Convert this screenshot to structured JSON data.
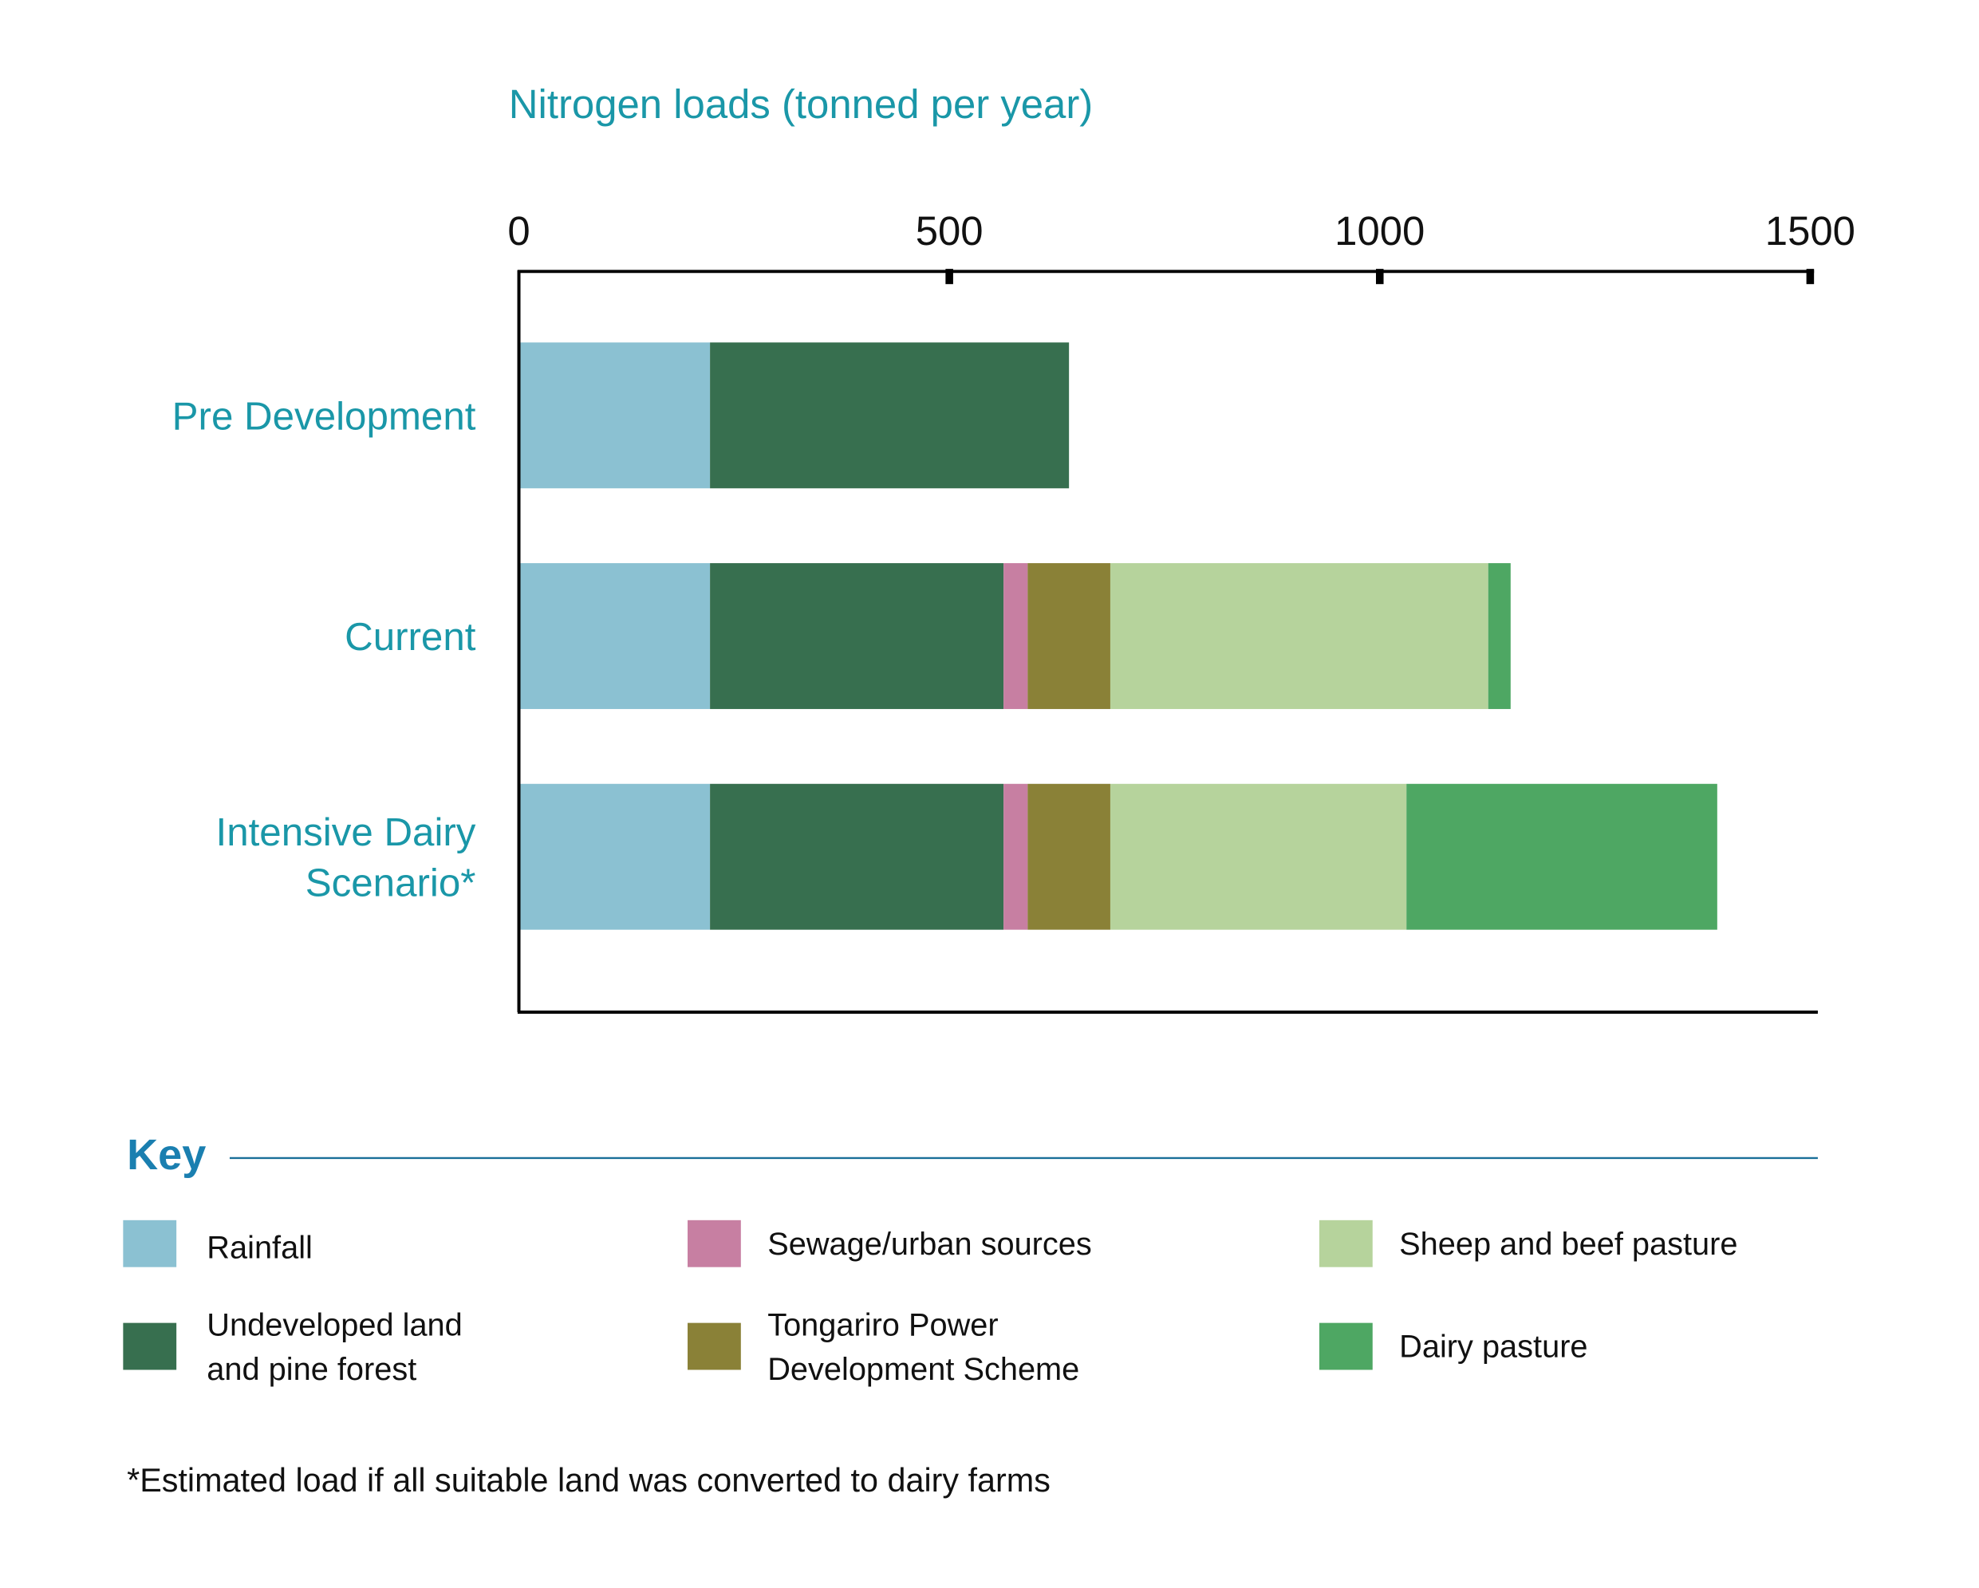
{
  "chart_data": {
    "type": "bar",
    "orientation": "horizontal",
    "stacked": true,
    "title": "Nitrogen loads (tonned per year)",
    "xlabel": "Nitrogen loads (tonned per year)",
    "ylabel": "",
    "xlim": [
      0,
      1500
    ],
    "xticks": [
      0,
      500,
      1000,
      1500
    ],
    "xtick_labels": [
      "0",
      "500",
      "1000",
      "1500"
    ],
    "grid": false,
    "categories": [
      "Pre Development",
      "Current",
      "Intensive Dairy Scenario*"
    ],
    "category_lines": [
      [
        "Pre Development"
      ],
      [
        "Current"
      ],
      [
        "Intensive Dairy",
        "Scenario*"
      ]
    ],
    "series": [
      {
        "name": "Rainfall",
        "color": "#8bc1d2",
        "values": [
          222,
          222,
          222
        ]
      },
      {
        "name": "Undeveloped land and pine forest",
        "color": "#376f4f",
        "values": [
          417,
          341,
          341
        ]
      },
      {
        "name": "Sewage/urban sources",
        "color": "#c77fa2",
        "values": [
          0,
          28,
          28
        ]
      },
      {
        "name": "Tongariro Power Development Scheme",
        "color": "#8a8137",
        "values": [
          0,
          96,
          96
        ]
      },
      {
        "name": "Sheep and beef pasture",
        "color": "#b6d39c",
        "values": [
          0,
          439,
          344
        ]
      },
      {
        "name": "Dairy pasture",
        "color": "#4ea763",
        "values": [
          0,
          26,
          361
        ]
      }
    ],
    "legend": {
      "title": "Key",
      "placement": "bottom",
      "entries": [
        {
          "lines": [
            "Rainfall"
          ]
        },
        {
          "lines": [
            "Undeveloped land",
            "and pine forest"
          ]
        },
        {
          "lines": [
            "Sewage/urban sources"
          ]
        },
        {
          "lines": [
            "Tongariro Power",
            "Development Scheme"
          ]
        },
        {
          "lines": [
            "Sheep and beef pasture"
          ]
        },
        {
          "lines": [
            "Dairy pasture"
          ]
        }
      ]
    },
    "footnote": "*Estimated load if all suitable land was converted to dairy farms"
  }
}
